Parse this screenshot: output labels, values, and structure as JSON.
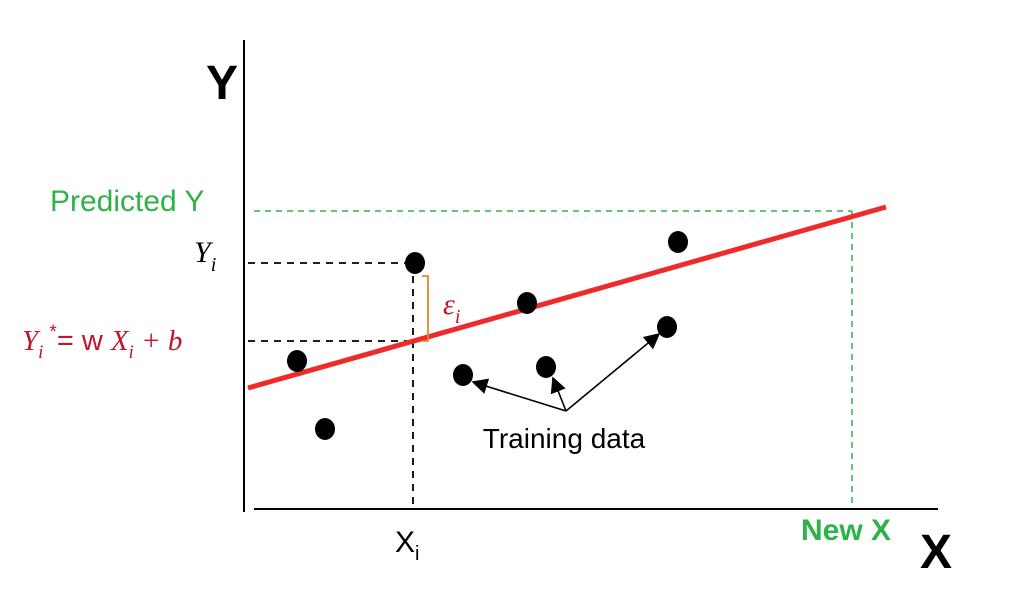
{
  "colors": {
    "regression_line": "#ee2a2a",
    "predicted": "#2db34a",
    "formula": "#c0152a",
    "error_bracket": "#e8842f",
    "points": "#000000",
    "axis": "#000000"
  },
  "axis": {
    "x_label": "X",
    "y_label": "Y",
    "x_tick_label": "X",
    "x_tick_subscript": "i",
    "new_x_label": "New X"
  },
  "labels": {
    "predicted_y": "Predicted Y",
    "yi_base": "Y",
    "yi_sub": "i",
    "error_symbol": "ε",
    "error_sub": "i",
    "formula_y": "Y",
    "formula_y_sub": "i",
    "formula_star": "*",
    "formula_rest_prefix": "= w ",
    "formula_x": "X",
    "formula_x_sub": "i",
    "formula_tail": " + b",
    "training_data": "Training data"
  },
  "icons": {
    "arrow": "arrow-icon"
  }
}
